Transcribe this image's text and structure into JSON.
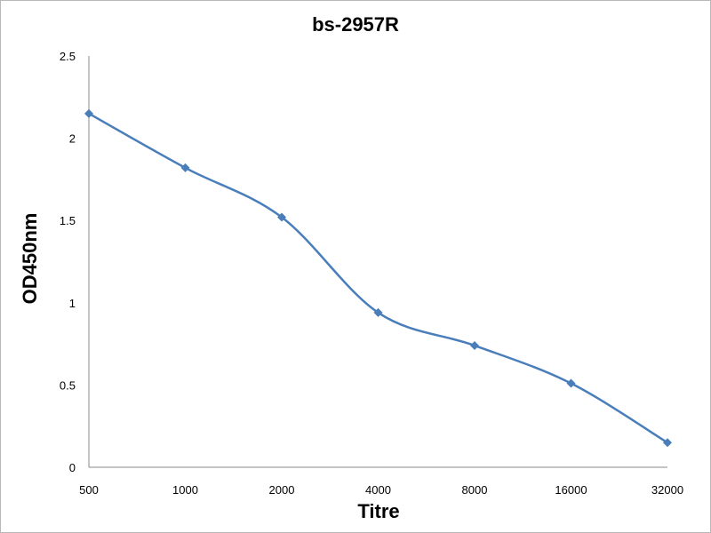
{
  "chart_data": {
    "type": "line",
    "title": "bs-2957R",
    "xlabel": "Titre",
    "ylabel": "OD450nm",
    "categories": [
      "500",
      "1000",
      "2000",
      "4000",
      "8000",
      "16000",
      "32000"
    ],
    "series": [
      {
        "values": [
          2.15,
          1.82,
          1.52,
          0.94,
          0.74,
          0.51,
          0.15
        ]
      }
    ],
    "ylim": [
      0,
      2.5
    ],
    "yticks": [
      "0",
      "0.5",
      "1",
      "1.5",
      "2",
      "2.5"
    ],
    "ytick_values": [
      0,
      0.5,
      1,
      1.5,
      2,
      2.5
    ],
    "grid": false,
    "line_color": "#4a7ebb",
    "marker": "diamond",
    "smooth": true
  }
}
